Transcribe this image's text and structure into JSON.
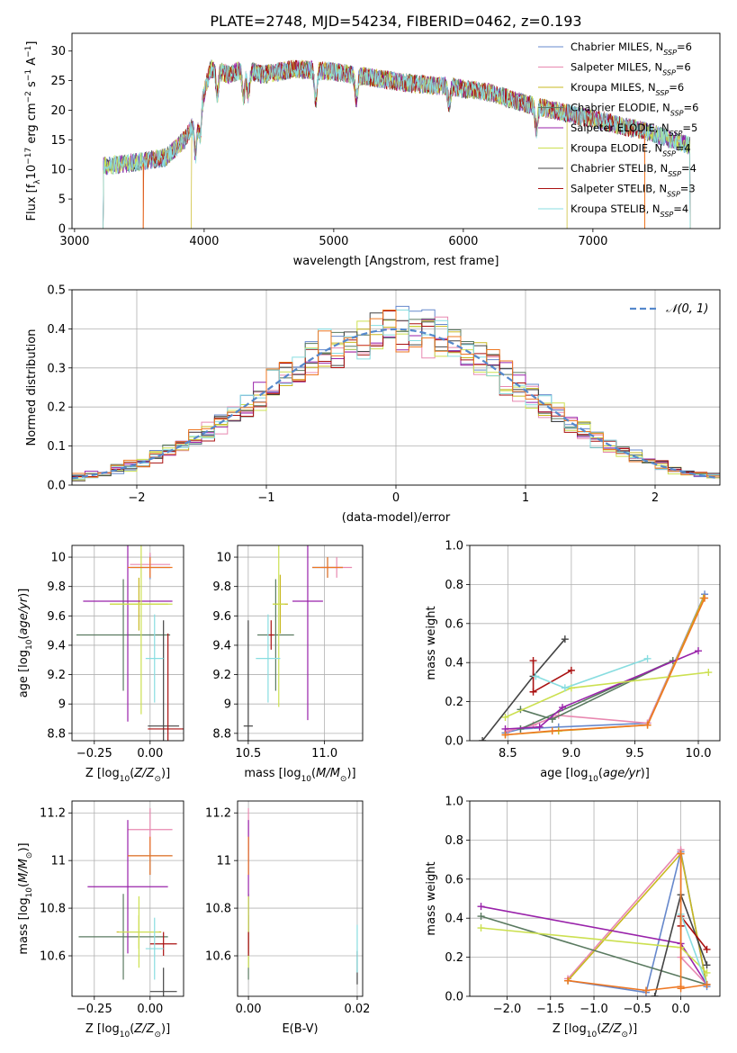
{
  "title": "PLATE=2748, MJD=54234, FIBERID=0462, z=0.193",
  "colors": [
    "#6688cc",
    "#e888b0",
    "#c8b820",
    "#5a7a60",
    "#9922aa",
    "#cce050",
    "#444444",
    "#aa1111",
    "#88dde0",
    "#ee7722"
  ],
  "legend_top": [
    {
      "label": "Chabrier MILES, N",
      "sub": "SSP",
      "suffix": "=6",
      "color": "#6688cc"
    },
    {
      "label": "Salpeter MILES, N",
      "sub": "SSP",
      "suffix": "=6",
      "color": "#e888b0"
    },
    {
      "label": "Kroupa MILES, N",
      "sub": "SSP",
      "suffix": "=6",
      "color": "#c8b820"
    },
    {
      "label": "Chabrier ELODIE, N",
      "sub": "SSP",
      "suffix": "=6",
      "color": "#5a7a60"
    },
    {
      "label": "Salpeter ELODIE, N",
      "sub": "SSP",
      "suffix": "=5",
      "color": "#9922aa"
    },
    {
      "label": "Kroupa ELODIE, N",
      "sub": "SSP",
      "suffix": "=4",
      "color": "#cce050"
    },
    {
      "label": "Chabrier STELIB, N",
      "sub": "SSP",
      "suffix": "=4",
      "color": "#444444"
    },
    {
      "label": "Salpeter STELIB, N",
      "sub": "SSP",
      "suffix": "=3",
      "color": "#aa1111"
    },
    {
      "label": "Kroupa STELIB, N",
      "sub": "SSP",
      "suffix": "=4",
      "color": "#88dde0"
    }
  ],
  "chart_data": [
    {
      "type": "line",
      "panel": "spectrum",
      "xlabel": "wavelength [Angstrom, rest frame]",
      "ylabel": "Flux [fλ10⁻¹⁷ erg cm⁻² s⁻¹ A⁻¹]",
      "xlim": [
        2980,
        7980
      ],
      "ylim": [
        0,
        33
      ],
      "xticks": [
        3000,
        4000,
        5000,
        6000,
        7000
      ],
      "yticks": [
        0,
        5,
        10,
        15,
        20,
        25,
        30
      ],
      "grid": false,
      "series_ranges": [
        [
          3220,
          7750
        ],
        [
          3530,
          7400
        ],
        [
          3900,
          6800
        ],
        [
          3220,
          7750
        ],
        [
          3220,
          7750
        ],
        [
          3220,
          7750
        ],
        [
          3220,
          7750
        ],
        [
          3530,
          7400
        ],
        [
          3220,
          7750
        ]
      ],
      "envelope": [
        [
          3220,
          10.5
        ],
        [
          3400,
          11
        ],
        [
          3550,
          11.5
        ],
        [
          3700,
          12
        ],
        [
          3850,
          15
        ],
        [
          3950,
          19
        ],
        [
          4050,
          27
        ],
        [
          4200,
          26
        ],
        [
          4300,
          27
        ],
        [
          4450,
          26
        ],
        [
          4700,
          27
        ],
        [
          5000,
          26.5
        ],
        [
          5300,
          25.5
        ],
        [
          5600,
          24.5
        ],
        [
          5900,
          24
        ],
        [
          6200,
          23
        ],
        [
          6500,
          21
        ],
        [
          6800,
          19.5
        ],
        [
          7100,
          18
        ],
        [
          7400,
          16.5
        ],
        [
          7750,
          14
        ]
      ]
    },
    {
      "type": "line",
      "panel": "residual-histogram",
      "xlabel": "(data-model)/error",
      "ylabel": "Normed distribution",
      "xlim": [
        -2.5,
        2.5
      ],
      "ylim": [
        0,
        0.5
      ],
      "xticks": [
        -2,
        -1,
        0,
        1,
        2
      ],
      "xtick_labels": [
        "−2",
        "−1",
        "0",
        "1",
        "2"
      ],
      "yticks": [
        0,
        0.1,
        0.2,
        0.3,
        0.4,
        0.5
      ],
      "ytick_labels": [
        "0.0",
        "0.1",
        "0.2",
        "0.3",
        "0.4",
        "0.5"
      ],
      "grid": true,
      "legend": {
        "label": "𝒩(0, 1)",
        "position": "top-right"
      },
      "bin_width": 0.1
    },
    {
      "type": "scatter",
      "panel": "age-vs-Z",
      "xlabel": "Z [log10(Z/Z⊙)]",
      "ylabel": "age  [log10(age/yr)]",
      "xlim": [
        -0.35,
        0.15
      ],
      "ylim": [
        8.75,
        10.08
      ],
      "xticks": [
        -0.25,
        0.0
      ],
      "xtick_labels": [
        "−0.25",
        "0.00"
      ],
      "yticks": [
        8.8,
        9.0,
        9.2,
        9.4,
        9.6,
        9.8,
        10.0
      ],
      "grid": true,
      "points": [
        {
          "x": 0.0,
          "y": 9.93,
          "xe": 0.09,
          "ye": 0.08,
          "color": "#6688cc"
        },
        {
          "x": 0.0,
          "y": 9.95,
          "xe": 0.09,
          "ye": 0.08,
          "color": "#e888b0"
        },
        {
          "x": -0.05,
          "y": 9.68,
          "xe": 0.13,
          "ye": 0.18,
          "color": "#c8b820"
        },
        {
          "x": -0.12,
          "y": 9.47,
          "xe": 0.21,
          "ye": 0.38,
          "color": "#5a7a60"
        },
        {
          "x": -0.1,
          "y": 9.7,
          "xe": 0.2,
          "ye": 0.82,
          "color": "#9922aa"
        },
        {
          "x": -0.04,
          "y": 9.68,
          "xe": 0.14,
          "ye": 0.75,
          "color": "#cce050"
        },
        {
          "x": 0.06,
          "y": 8.85,
          "xe": 0.07,
          "ye": 0.72,
          "color": "#444444"
        },
        {
          "x": 0.08,
          "y": 8.83,
          "xe": 0.09,
          "ye": 0.65,
          "color": "#aa1111"
        },
        {
          "x": 0.02,
          "y": 9.31,
          "xe": 0.04,
          "ye": 0.3,
          "color": "#88dde0"
        },
        {
          "x": 0.0,
          "y": 9.93,
          "xe": 0.1,
          "ye": 0.07,
          "color": "#ee7722"
        }
      ]
    },
    {
      "type": "scatter",
      "panel": "age-vs-mass",
      "xlabel": "mass [log10(M/M⊙)]",
      "ylabel": "",
      "xlim": [
        10.43,
        11.25
      ],
      "ylim": [
        8.75,
        10.08
      ],
      "xticks": [
        10.5,
        11.0
      ],
      "xtick_labels": [
        "10.5",
        "11.0"
      ],
      "yticks": [
        8.8,
        9.0,
        9.2,
        9.4,
        9.6,
        9.8,
        10.0
      ],
      "grid": true,
      "points": [
        {
          "x": 11.02,
          "y": 9.93,
          "xe": 0.1,
          "ye": 0.07,
          "color": "#6688cc"
        },
        {
          "x": 11.08,
          "y": 9.93,
          "xe": 0.1,
          "ye": 0.07,
          "color": "#e888b0"
        },
        {
          "x": 10.71,
          "y": 9.68,
          "xe": 0.05,
          "ye": 0.2,
          "color": "#c8b820"
        },
        {
          "x": 10.68,
          "y": 9.47,
          "xe": 0.12,
          "ye": 0.38,
          "color": "#5a7a60"
        },
        {
          "x": 10.89,
          "y": 9.7,
          "xe": 0.1,
          "ye": 0.81,
          "color": "#9922aa"
        },
        {
          "x": 10.7,
          "y": 9.68,
          "xe": 0.04,
          "ye": 0.7,
          "color": "#cce050"
        },
        {
          "x": 10.5,
          "y": 8.85,
          "xe": 0.03,
          "ye": 0.72,
          "color": "#444444"
        },
        {
          "x": 10.65,
          "y": 9.47,
          "xe": 0.02,
          "ye": 0.1,
          "color": "#aa1111"
        },
        {
          "x": 10.63,
          "y": 9.31,
          "xe": 0.08,
          "ye": 0.3,
          "color": "#88dde0"
        },
        {
          "x": 11.02,
          "y": 9.93,
          "xe": 0.1,
          "ye": 0.07,
          "color": "#ee7722"
        }
      ]
    },
    {
      "type": "line",
      "panel": "massweight-vs-age",
      "xlabel": "age  [log10(age/yr)]",
      "ylabel": "mass weight",
      "xlim": [
        8.2,
        10.17
      ],
      "ylim": [
        0,
        1.0
      ],
      "xticks": [
        8.5,
        9.0,
        9.5,
        10.0
      ],
      "xtick_labels": [
        "8.5",
        "9.0",
        "9.5",
        "10.0"
      ],
      "yticks": [
        0,
        0.2,
        0.4,
        0.6,
        0.8,
        1.0
      ],
      "ytick_labels": [
        "0.0",
        "0.2",
        "0.4",
        "0.6",
        "0.8",
        "1.0"
      ],
      "grid": true,
      "series": [
        {
          "color": "#6688cc",
          "points": [
            [
              8.48,
              0.04
            ],
            [
              8.6,
              0.06
            ],
            [
              8.9,
              0.07
            ],
            [
              9.6,
              0.09
            ],
            [
              10.05,
              0.75
            ]
          ]
        },
        {
          "color": "#e888b0",
          "points": [
            [
              8.5,
              0.05
            ],
            [
              8.7,
              0.08
            ],
            [
              8.9,
              0.13
            ],
            [
              9.6,
              0.09
            ],
            [
              10.04,
              0.73
            ]
          ]
        },
        {
          "color": "#c8b820",
          "points": [
            [
              8.48,
              0.03
            ],
            [
              8.9,
              0.05
            ],
            [
              9.6,
              0.08
            ],
            [
              10.04,
              0.73
            ]
          ]
        },
        {
          "color": "#5a7a60",
          "points": [
            [
              8.6,
              0.16
            ],
            [
              8.85,
              0.11
            ],
            [
              9.8,
              0.41
            ],
            [
              8.6,
              0.06
            ]
          ]
        },
        {
          "color": "#9922aa",
          "points": [
            [
              8.48,
              0.06
            ],
            [
              8.75,
              0.07
            ],
            [
              8.93,
              0.17
            ],
            [
              10.0,
              0.46
            ]
          ]
        },
        {
          "color": "#cce050",
          "points": [
            [
              8.48,
              0.12
            ],
            [
              9.0,
              0.27
            ],
            [
              10.08,
              0.35
            ]
          ]
        },
        {
          "color": "#444444",
          "points": [
            [
              8.3,
              0.0
            ],
            [
              8.7,
              0.33
            ],
            [
              8.95,
              0.52
            ]
          ]
        },
        {
          "color": "#aa1111",
          "points": [
            [
              8.7,
              0.41
            ],
            [
              8.7,
              0.25
            ],
            [
              9.0,
              0.36
            ]
          ]
        },
        {
          "color": "#88dde0",
          "points": [
            [
              8.72,
              0.33
            ],
            [
              8.95,
              0.27
            ],
            [
              9.6,
              0.42
            ]
          ]
        },
        {
          "color": "#ee7722",
          "points": [
            [
              8.48,
              0.03
            ],
            [
              8.85,
              0.05
            ],
            [
              9.6,
              0.08
            ],
            [
              10.05,
              0.73
            ]
          ]
        }
      ]
    },
    {
      "type": "scatter",
      "panel": "mass-vs-Z",
      "xlabel": "Z [log10(Z/Z⊙)]",
      "ylabel": "mass [log10(M/M⊙)]",
      "xlim": [
        -0.35,
        0.15
      ],
      "ylim": [
        10.43,
        11.25
      ],
      "xticks": [
        -0.25,
        0.0
      ],
      "xtick_labels": [
        "−0.25",
        "0.00"
      ],
      "yticks": [
        10.6,
        10.8,
        11.0,
        11.2
      ],
      "grid": true,
      "points": [
        {
          "x": 0.0,
          "y": 11.02,
          "xe": 0.1,
          "ye": 0.08,
          "color": "#6688cc"
        },
        {
          "x": 0.0,
          "y": 11.13,
          "xe": 0.1,
          "ye": 0.09,
          "color": "#e888b0"
        },
        {
          "x": -0.05,
          "y": 10.7,
          "xe": 0.1,
          "ye": 0.07,
          "color": "#c8b820"
        },
        {
          "x": -0.12,
          "y": 10.68,
          "xe": 0.2,
          "ye": 0.18,
          "color": "#5a7a60"
        },
        {
          "x": -0.1,
          "y": 10.89,
          "xe": 0.18,
          "ye": 0.28,
          "color": "#9922aa"
        },
        {
          "x": -0.05,
          "y": 10.7,
          "xe": 0.09,
          "ye": 0.15,
          "color": "#cce050"
        },
        {
          "x": 0.06,
          "y": 10.45,
          "xe": 0.06,
          "ye": 0.1,
          "color": "#444444"
        },
        {
          "x": 0.06,
          "y": 10.65,
          "xe": 0.06,
          "ye": 0.05,
          "color": "#aa1111"
        },
        {
          "x": 0.02,
          "y": 10.63,
          "xe": 0.04,
          "ye": 0.13,
          "color": "#88dde0"
        },
        {
          "x": 0.0,
          "y": 11.02,
          "xe": 0.1,
          "ye": 0.08,
          "color": "#ee7722"
        }
      ]
    },
    {
      "type": "scatter",
      "panel": "mass-vs-EBV",
      "xlabel": "E(B-V)",
      "ylabel": "",
      "xlim": [
        -0.002,
        0.021
      ],
      "ylim": [
        10.43,
        11.25
      ],
      "xticks": [
        0.0,
        0.02
      ],
      "xtick_labels": [
        "0.00",
        "0.02"
      ],
      "yticks": [
        10.6,
        10.8,
        11.0,
        11.2
      ],
      "grid": true,
      "points": [
        {
          "x": 0.0,
          "y": 11.02,
          "xe": 0,
          "ye": 0.08,
          "color": "#6688cc"
        },
        {
          "x": 0.0,
          "y": 11.13,
          "xe": 0,
          "ye": 0.09,
          "color": "#e888b0"
        },
        {
          "x": 0.0,
          "y": 10.7,
          "xe": 0,
          "ye": 0.07,
          "color": "#c8b820"
        },
        {
          "x": 0.0,
          "y": 10.68,
          "xe": 0,
          "ye": 0.18,
          "color": "#5a7a60"
        },
        {
          "x": 0.0,
          "y": 10.89,
          "xe": 0,
          "ye": 0.28,
          "color": "#9922aa"
        },
        {
          "x": 0.0,
          "y": 10.7,
          "xe": 0,
          "ye": 0.15,
          "color": "#cce050"
        },
        {
          "x": 0.02,
          "y": 10.55,
          "xe": 0,
          "ye": 0.07,
          "color": "#444444"
        },
        {
          "x": 0.0,
          "y": 10.65,
          "xe": 0,
          "ye": 0.05,
          "color": "#aa1111"
        },
        {
          "x": 0.02,
          "y": 10.63,
          "xe": 0,
          "ye": 0.1,
          "color": "#88dde0"
        },
        {
          "x": 0.0,
          "y": 11.02,
          "xe": 0,
          "ye": 0.08,
          "color": "#ee7722"
        }
      ]
    },
    {
      "type": "line",
      "panel": "massweight-vs-Z",
      "xlabel": "Z [log10(Z/Z⊙)]",
      "ylabel": "mass weight",
      "xlim": [
        -2.43,
        0.45
      ],
      "ylim": [
        0,
        1.0
      ],
      "xticks": [
        -2.0,
        -1.5,
        -1.0,
        -0.5,
        0.0
      ],
      "xtick_labels": [
        "−2.0",
        "−1.5",
        "−1.0",
        "−0.5",
        "0.0"
      ],
      "yticks": [
        0,
        0.2,
        0.4,
        0.6,
        0.8,
        1.0
      ],
      "ytick_labels": [
        "0.0",
        "0.2",
        "0.4",
        "0.6",
        "0.8",
        "1.0"
      ],
      "grid": true,
      "series": [
        {
          "color": "#6688cc",
          "points": [
            [
              -1.3,
              0.08
            ],
            [
              -0.4,
              0.02
            ],
            [
              0.0,
              0.74
            ],
            [
              0.3,
              0.05
            ]
          ]
        },
        {
          "color": "#e888b0",
          "points": [
            [
              -1.3,
              0.09
            ],
            [
              0.0,
              0.75
            ],
            [
              0.0,
              0.2
            ],
            [
              0.3,
              0.06
            ]
          ]
        },
        {
          "color": "#c8b820",
          "points": [
            [
              -1.3,
              0.08
            ],
            [
              0.0,
              0.73
            ],
            [
              0.3,
              0.06
            ]
          ]
        },
        {
          "color": "#5a7a60",
          "points": [
            [
              -2.3,
              0.41
            ],
            [
              0.3,
              0.06
            ]
          ]
        },
        {
          "color": "#9922aa",
          "points": [
            [
              -2.3,
              0.46
            ],
            [
              0.0,
              0.27
            ],
            [
              0.3,
              0.06
            ]
          ]
        },
        {
          "color": "#cce050",
          "points": [
            [
              -2.3,
              0.35
            ],
            [
              0.0,
              0.25
            ],
            [
              0.3,
              0.12
            ]
          ]
        },
        {
          "color": "#444444",
          "points": [
            [
              -0.3,
              0.0
            ],
            [
              0.0,
              0.52
            ],
            [
              0.3,
              0.16
            ]
          ]
        },
        {
          "color": "#aa1111",
          "points": [
            [
              0.0,
              0.36
            ],
            [
              0.0,
              0.41
            ],
            [
              0.3,
              0.24
            ]
          ]
        },
        {
          "color": "#88dde0",
          "points": [
            [
              0.0,
              0.42
            ],
            [
              0.3,
              0.06
            ]
          ]
        },
        {
          "color": "#ee7722",
          "points": [
            [
              -1.3,
              0.08
            ],
            [
              -0.4,
              0.03
            ],
            [
              0.0,
              0.05
            ],
            [
              0.0,
              0.73
            ],
            [
              0.0,
              0.04
            ],
            [
              0.3,
              0.06
            ]
          ]
        }
      ]
    }
  ]
}
